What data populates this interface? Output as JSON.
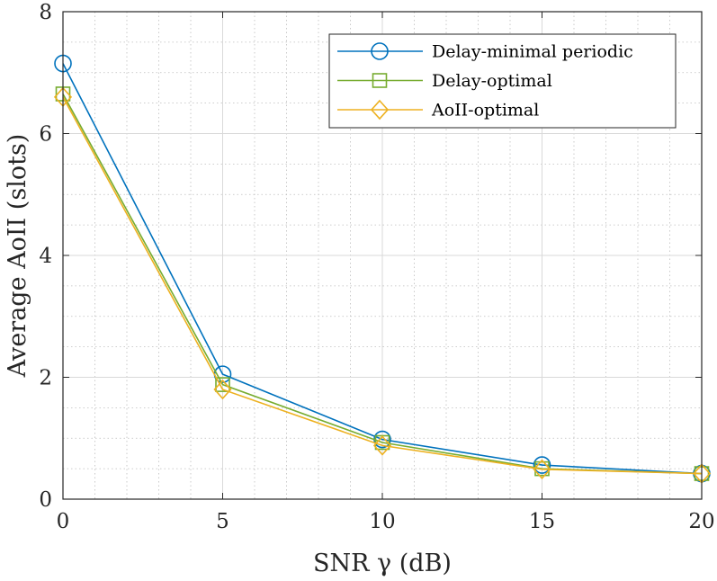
{
  "chart_data": {
    "type": "line",
    "title": "",
    "xlabel": "SNR γ (dB)",
    "ylabel": "Average AoII (slots)",
    "x": [
      0,
      5,
      10,
      15,
      20
    ],
    "xlim": [
      0,
      20
    ],
    "ylim": [
      0,
      8
    ],
    "xticks": [
      "0",
      "5",
      "10",
      "15",
      "20"
    ],
    "yticks": [
      "0",
      "2",
      "4",
      "6",
      "8"
    ],
    "grid": true,
    "minor_grid": true,
    "legend_position": "top-right",
    "series": [
      {
        "name": "Delay-minimal periodic",
        "color": "#0072BD",
        "marker": "circle",
        "values": [
          7.15,
          2.05,
          0.98,
          0.56,
          0.42
        ]
      },
      {
        "name": "Delay-optimal",
        "color": "#77AC30",
        "marker": "square",
        "values": [
          6.65,
          1.88,
          0.93,
          0.5,
          0.42
        ]
      },
      {
        "name": "AoII-optimal",
        "color": "#EDB120",
        "marker": "diamond",
        "values": [
          6.6,
          1.8,
          0.88,
          0.49,
          0.42
        ]
      }
    ]
  }
}
